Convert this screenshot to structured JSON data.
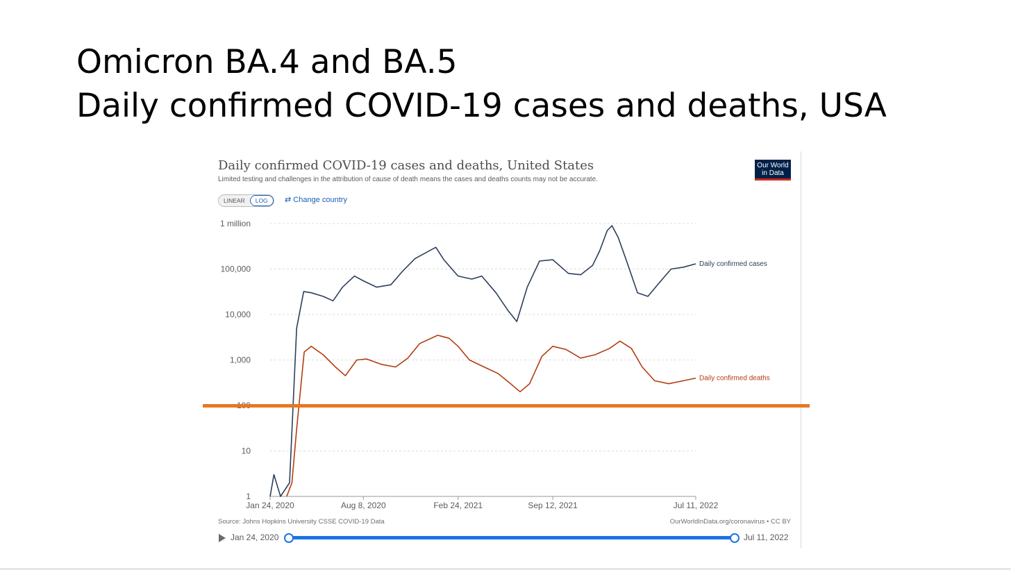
{
  "slide": {
    "title_line1": "Omicron BA.4 and BA.5",
    "title_line2": "Daily confirmed COVID-19 cases and deaths, USA"
  },
  "panel": {
    "title": "Daily confirmed COVID-19 cases and deaths, United States",
    "subtitle": "Limited testing and challenges in the attribution of cause of death means the cases and deaths counts may not be accurate.",
    "logo_line1": "Our World",
    "logo_line2": "in Data",
    "scale_linear": "LINEAR",
    "scale_log": "LOG",
    "change_country": "Change country",
    "source": "Source: Johns Hopkins University CSSE COVID-19 Data",
    "license": "OurWorldInData.org/coronavirus • CC BY",
    "timeline_start": "Jan 24, 2020",
    "timeline_end": "Jul 11, 2022"
  },
  "colors": {
    "cases": "#2c3e5a",
    "deaths": "#b33c0f",
    "highlight": "#e87722",
    "accent": "#1a73e8"
  },
  "highlight_value": 100,
  "chart_data": {
    "type": "line",
    "y_scale": "log",
    "ylim": [
      1,
      1000000
    ],
    "y_ticks": [
      {
        "value": 1,
        "label": "1"
      },
      {
        "value": 10,
        "label": "10"
      },
      {
        "value": 100,
        "label": "100"
      },
      {
        "value": 1000,
        "label": "1,000"
      },
      {
        "value": 10000,
        "label": "10,000"
      },
      {
        "value": 100000,
        "label": "100,000"
      },
      {
        "value": 1000000,
        "label": "1 million"
      }
    ],
    "x_ticks": [
      {
        "date": "2020-01-24",
        "label": "Jan 24, 2020"
      },
      {
        "date": "2020-08-08",
        "label": "Aug 8, 2020"
      },
      {
        "date": "2021-02-24",
        "label": "Feb 24, 2021"
      },
      {
        "date": "2021-09-12",
        "label": "Sep 12, 2021"
      },
      {
        "date": "2022-07-11",
        "label": "Jul 11, 2022"
      }
    ],
    "xlim": [
      "2020-01-24",
      "2022-07-11"
    ],
    "grid": true,
    "series": [
      {
        "name": "Daily confirmed cases",
        "points": [
          [
            "2020-01-24",
            1
          ],
          [
            "2020-02-01",
            3
          ],
          [
            "2020-02-15",
            1
          ],
          [
            "2020-03-05",
            2
          ],
          [
            "2020-03-20",
            5000
          ],
          [
            "2020-04-04",
            32000
          ],
          [
            "2020-04-20",
            30000
          ],
          [
            "2020-05-15",
            25000
          ],
          [
            "2020-06-05",
            20000
          ],
          [
            "2020-06-25",
            40000
          ],
          [
            "2020-07-20",
            70000
          ],
          [
            "2020-08-08",
            55000
          ],
          [
            "2020-09-05",
            40000
          ],
          [
            "2020-10-05",
            45000
          ],
          [
            "2020-10-30",
            90000
          ],
          [
            "2020-11-25",
            170000
          ],
          [
            "2020-12-15",
            220000
          ],
          [
            "2021-01-08",
            300000
          ],
          [
            "2021-01-25",
            160000
          ],
          [
            "2021-02-24",
            70000
          ],
          [
            "2021-03-25",
            60000
          ],
          [
            "2021-04-15",
            70000
          ],
          [
            "2021-05-15",
            30000
          ],
          [
            "2021-06-10",
            12000
          ],
          [
            "2021-06-28",
            7000
          ],
          [
            "2021-07-20",
            40000
          ],
          [
            "2021-08-15",
            150000
          ],
          [
            "2021-09-12",
            160000
          ],
          [
            "2021-10-15",
            80000
          ],
          [
            "2021-11-10",
            75000
          ],
          [
            "2021-12-05",
            120000
          ],
          [
            "2021-12-20",
            250000
          ],
          [
            "2022-01-05",
            700000
          ],
          [
            "2022-01-15",
            900000
          ],
          [
            "2022-01-28",
            500000
          ],
          [
            "2022-02-15",
            150000
          ],
          [
            "2022-03-10",
            30000
          ],
          [
            "2022-04-01",
            25000
          ],
          [
            "2022-04-25",
            50000
          ],
          [
            "2022-05-20",
            100000
          ],
          [
            "2022-06-15",
            110000
          ],
          [
            "2022-07-11",
            130000
          ]
        ]
      },
      {
        "name": "Daily confirmed deaths",
        "points": [
          [
            "2020-02-28",
            1
          ],
          [
            "2020-03-10",
            2
          ],
          [
            "2020-03-20",
            30
          ],
          [
            "2020-04-05",
            1500
          ],
          [
            "2020-04-20",
            2000
          ],
          [
            "2020-05-15",
            1300
          ],
          [
            "2020-06-10",
            700
          ],
          [
            "2020-07-01",
            450
          ],
          [
            "2020-07-25",
            1000
          ],
          [
            "2020-08-15",
            1050
          ],
          [
            "2020-09-15",
            800
          ],
          [
            "2020-10-15",
            700
          ],
          [
            "2020-11-10",
            1100
          ],
          [
            "2020-12-05",
            2300
          ],
          [
            "2021-01-12",
            3500
          ],
          [
            "2021-02-05",
            3000
          ],
          [
            "2021-02-24",
            2000
          ],
          [
            "2021-03-20",
            1000
          ],
          [
            "2021-04-20",
            700
          ],
          [
            "2021-05-20",
            500
          ],
          [
            "2021-06-15",
            300
          ],
          [
            "2021-07-05",
            200
          ],
          [
            "2021-07-25",
            300
          ],
          [
            "2021-08-20",
            1200
          ],
          [
            "2021-09-12",
            2000
          ],
          [
            "2021-10-10",
            1700
          ],
          [
            "2021-11-10",
            1100
          ],
          [
            "2021-12-10",
            1300
          ],
          [
            "2022-01-10",
            1800
          ],
          [
            "2022-02-01",
            2600
          ],
          [
            "2022-02-25",
            1800
          ],
          [
            "2022-03-20",
            700
          ],
          [
            "2022-04-15",
            350
          ],
          [
            "2022-05-15",
            300
          ],
          [
            "2022-06-15",
            350
          ],
          [
            "2022-07-11",
            400
          ]
        ]
      }
    ]
  }
}
